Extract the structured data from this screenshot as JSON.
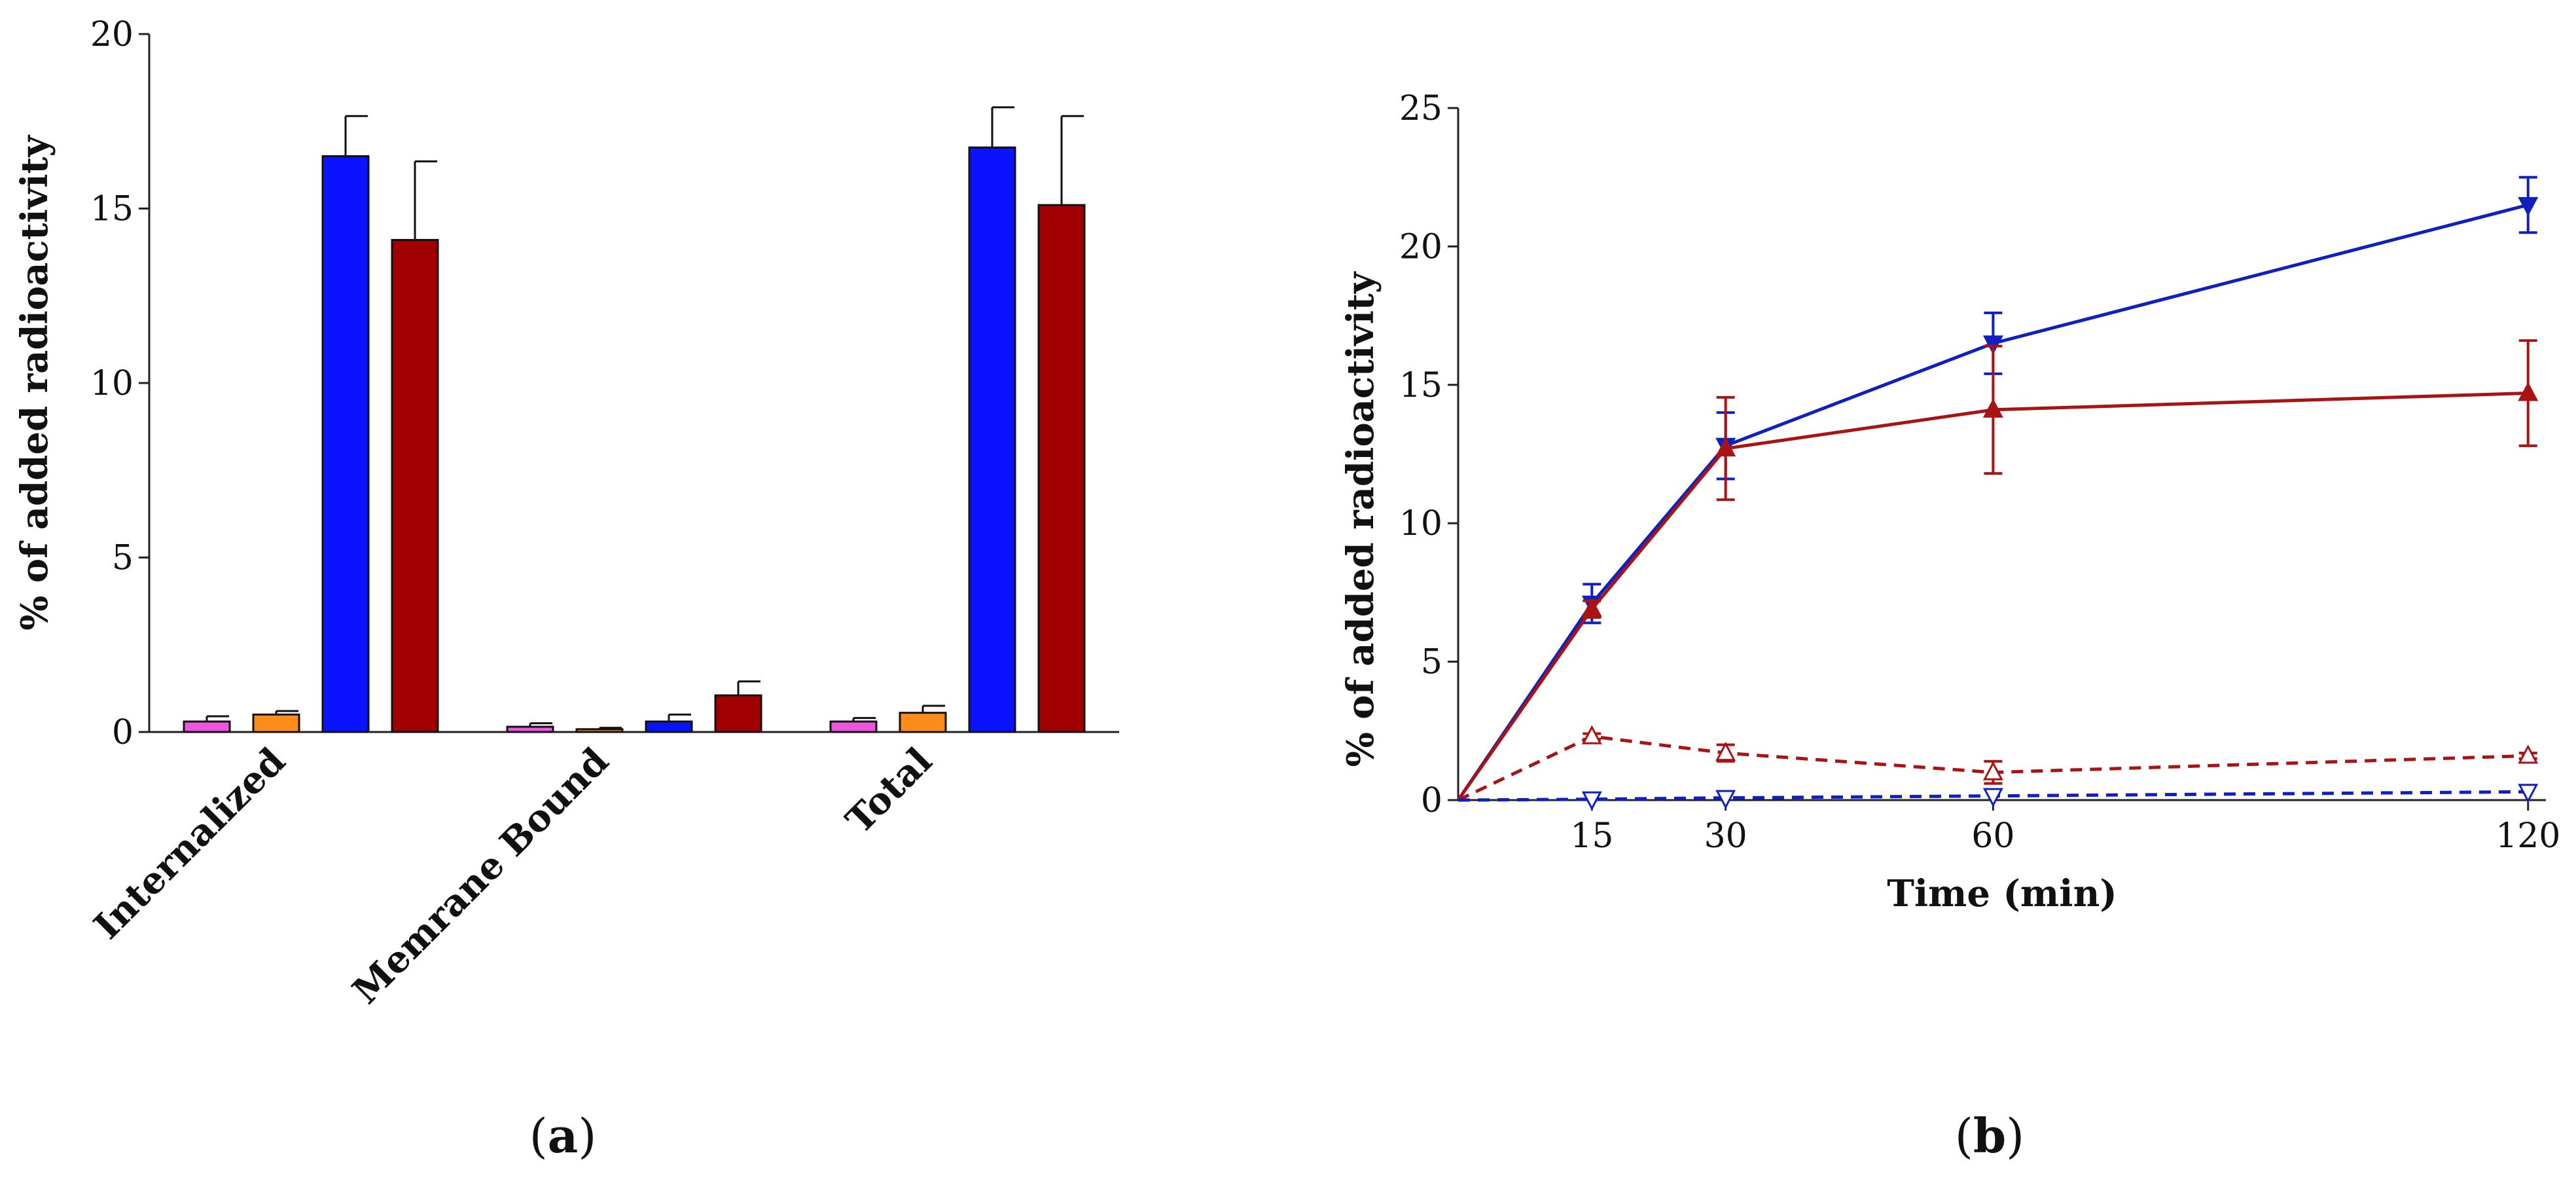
{
  "colors": {
    "pink": "#ee55dd",
    "orange": "#ff8c1a",
    "blue": "#0a12ff",
    "darkred": "#a00000",
    "line_blue": "#1020c0",
    "line_red": "#a81414"
  },
  "panel_labels": {
    "a": {
      "open": "(",
      "letter": "a",
      "close": ")"
    },
    "b": {
      "open": "(",
      "letter": "b",
      "close": ")"
    }
  },
  "chart_data": [
    {
      "panel": "a",
      "type": "bar",
      "ylabel": "% of added radioactivity",
      "xlabel": "",
      "ylim": [
        0,
        20
      ],
      "yticks": [
        "0",
        "5",
        "10",
        "15",
        "20"
      ],
      "categories": [
        "Internalized",
        "Memrane Bound",
        "Total"
      ],
      "series": [
        {
          "color": "pink",
          "values": [
            0.3,
            0.15,
            0.3
          ],
          "errors": [
            0.15,
            0.1,
            0.1
          ]
        },
        {
          "color": "orange",
          "values": [
            0.5,
            0.08,
            0.55
          ],
          "errors": [
            0.1,
            0.04,
            0.2
          ]
        },
        {
          "color": "blue",
          "values": [
            16.5,
            0.3,
            16.75
          ],
          "errors": [
            1.15,
            0.2,
            1.15
          ]
        },
        {
          "color": "darkred",
          "values": [
            14.1,
            1.05,
            15.1
          ],
          "errors": [
            2.25,
            0.4,
            2.55
          ]
        }
      ],
      "grid": false,
      "legend": "none"
    },
    {
      "panel": "b",
      "type": "line",
      "ylabel": "% of added radioactivity",
      "xlabel": "Time (min)",
      "xlim": [
        0,
        122
      ],
      "ylim": [
        0,
        25
      ],
      "xticks": [
        "15",
        "30",
        "60",
        "120"
      ],
      "yticks": [
        "0",
        "5",
        "10",
        "15",
        "20",
        "25"
      ],
      "series": [
        {
          "color": "line_blue",
          "style": "solid",
          "marker": "filled-triangle-down",
          "x": [
            0,
            15,
            30,
            60,
            120
          ],
          "y": [
            0,
            7.1,
            12.8,
            16.5,
            21.5
          ],
          "errors": [
            0,
            0.7,
            1.2,
            1.1,
            1.0
          ]
        },
        {
          "color": "line_red",
          "style": "solid",
          "marker": "filled-triangle-up",
          "x": [
            0,
            15,
            30,
            60,
            120
          ],
          "y": [
            0,
            6.9,
            12.7,
            14.1,
            14.7
          ],
          "errors": [
            0,
            0.3,
            1.85,
            2.3,
            1.9
          ]
        },
        {
          "color": "line_red",
          "style": "dashed",
          "marker": "open-triangle-up",
          "x": [
            0,
            15,
            30,
            60,
            120
          ],
          "y": [
            0,
            2.3,
            1.7,
            1.0,
            1.6
          ],
          "errors": [
            0,
            0.1,
            0.3,
            0.4,
            0.1
          ]
        },
        {
          "color": "line_blue",
          "style": "dashed",
          "marker": "open-triangle-down",
          "x": [
            0,
            15,
            30,
            60,
            120
          ],
          "y": [
            0,
            0.03,
            0.08,
            0.15,
            0.3
          ],
          "errors": [
            0,
            0,
            0,
            0,
            0
          ]
        }
      ],
      "grid": false,
      "legend": "none"
    }
  ]
}
